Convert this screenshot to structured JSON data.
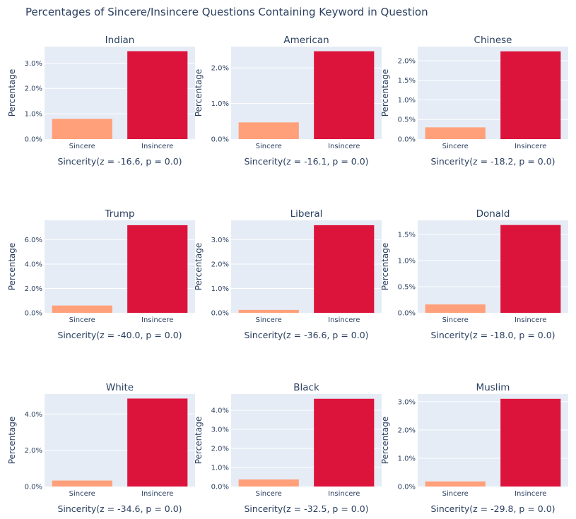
{
  "title": "Percentages of Sincere/Insincere Questions Containing Keyword in Question",
  "colors": {
    "plot_bg": "#e5ecf6",
    "sincere": "#ffa07a",
    "insincere": "#dc143c",
    "text": "#2a3f5f",
    "grid": "#ffffff"
  },
  "chart_data": [
    {
      "type": "bar",
      "title": "Indian",
      "categories": [
        "Sincere",
        "Insincere"
      ],
      "values": [
        0.8,
        3.47
      ],
      "ylabel": "Percentage",
      "xlabel": "Sincerity(z = -16.6, p = 0.0)",
      "ylim": [
        0,
        3.65
      ],
      "ticks": [
        0,
        1,
        2,
        3
      ],
      "tick_labels": [
        "0.0%",
        "1.0%",
        "2.0%",
        "3.0%"
      ],
      "grid": true
    },
    {
      "type": "bar",
      "title": "American",
      "categories": [
        "Sincere",
        "Insincere"
      ],
      "values": [
        0.47,
        2.47
      ],
      "ylabel": "Percentage",
      "xlabel": "Sincerity(z = -16.1, p = 0.0)",
      "ylim": [
        0,
        2.6
      ],
      "ticks": [
        0,
        1,
        2
      ],
      "tick_labels": [
        "0.0%",
        "1.0%",
        "2.0%"
      ],
      "grid": true
    },
    {
      "type": "bar",
      "title": "Chinese",
      "categories": [
        "Sincere",
        "Insincere"
      ],
      "values": [
        0.3,
        2.24
      ],
      "ylabel": "Percentage",
      "xlabel": "Sincerity(z = -18.2, p = 0.0)",
      "ylim": [
        0,
        2.36
      ],
      "ticks": [
        0,
        0.5,
        1,
        1.5,
        2
      ],
      "tick_labels": [
        "0.0%",
        "0.5%",
        "1.0%",
        "1.5%",
        "2.0%"
      ],
      "grid": true
    },
    {
      "type": "bar",
      "title": "Trump",
      "categories": [
        "Sincere",
        "Insincere"
      ],
      "values": [
        0.6,
        7.2
      ],
      "ylabel": "Percentage",
      "xlabel": "Sincerity(z = -40.0, p = 0.0)",
      "ylim": [
        0,
        7.6
      ],
      "ticks": [
        0,
        2,
        4,
        6
      ],
      "tick_labels": [
        "0.0%",
        "2.0%",
        "4.0%",
        "6.0%"
      ],
      "grid": true
    },
    {
      "type": "bar",
      "title": "Liberal",
      "categories": [
        "Sincere",
        "Insincere"
      ],
      "values": [
        0.12,
        3.6
      ],
      "ylabel": "Percentage",
      "xlabel": "Sincerity(z = -36.6, p = 0.0)",
      "ylim": [
        0,
        3.8
      ],
      "ticks": [
        0,
        1,
        2,
        3
      ],
      "tick_labels": [
        "0.0%",
        "1.0%",
        "2.0%",
        "3.0%"
      ],
      "grid": true
    },
    {
      "type": "bar",
      "title": "Donald",
      "categories": [
        "Sincere",
        "Insincere"
      ],
      "values": [
        0.16,
        1.68
      ],
      "ylabel": "Percentage",
      "xlabel": "Sincerity(z = -18.0, p = 0.0)",
      "ylim": [
        0,
        1.77
      ],
      "ticks": [
        0,
        0.5,
        1,
        1.5
      ],
      "tick_labels": [
        "0.0%",
        "0.5%",
        "1.0%",
        "1.5%"
      ],
      "grid": true
    },
    {
      "type": "bar",
      "title": "White",
      "categories": [
        "Sincere",
        "Insincere"
      ],
      "values": [
        0.33,
        4.85
      ],
      "ylabel": "Percentage",
      "xlabel": "Sincerity(z = -34.6, p = 0.0)",
      "ylim": [
        0,
        5.1
      ],
      "ticks": [
        0,
        2,
        4
      ],
      "tick_labels": [
        "0.0%",
        "2.0%",
        "4.0%"
      ],
      "grid": true
    },
    {
      "type": "bar",
      "title": "Black",
      "categories": [
        "Sincere",
        "Insincere"
      ],
      "values": [
        0.37,
        4.6
      ],
      "ylabel": "Percentage",
      "xlabel": "Sincerity(z = -32.5, p = 0.0)",
      "ylim": [
        0,
        4.85
      ],
      "ticks": [
        0,
        1,
        2,
        3,
        4
      ],
      "tick_labels": [
        "0.0%",
        "1.0%",
        "2.0%",
        "3.0%",
        "4.0%"
      ],
      "grid": true
    },
    {
      "type": "bar",
      "title": "Muslim",
      "categories": [
        "Sincere",
        "Insincere"
      ],
      "values": [
        0.18,
        3.1
      ],
      "ylabel": "Percentage",
      "xlabel": "Sincerity(z = -29.8, p = 0.0)",
      "ylim": [
        0,
        3.27
      ],
      "ticks": [
        0,
        1,
        2,
        3
      ],
      "tick_labels": [
        "0.0%",
        "1.0%",
        "2.0%",
        "3.0%"
      ],
      "grid": true
    }
  ]
}
